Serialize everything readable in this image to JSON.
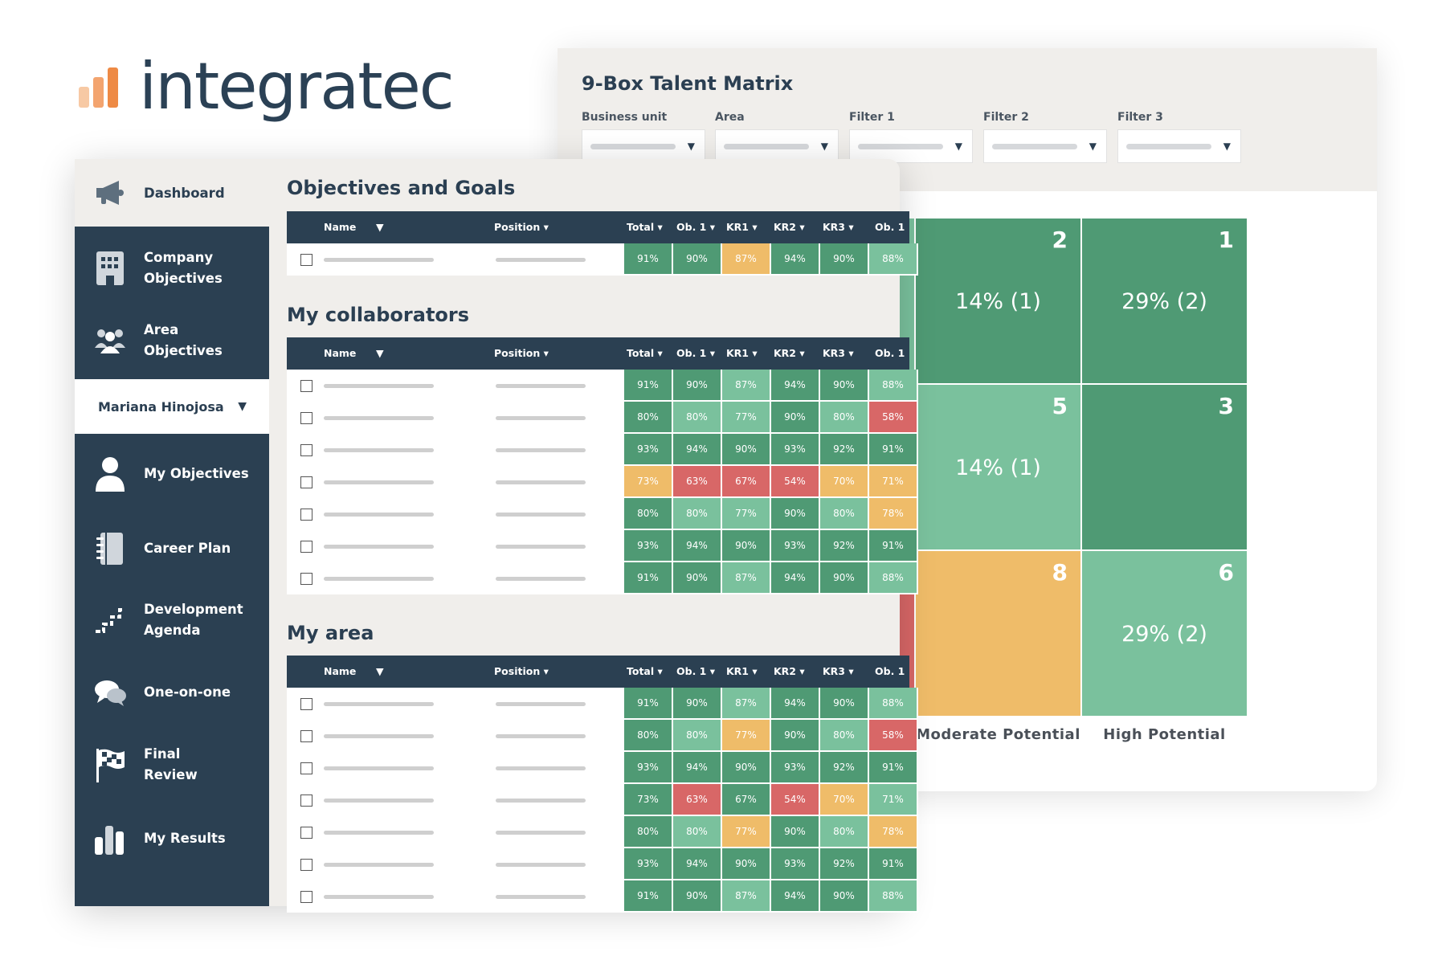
{
  "logo": {
    "text": "integratec",
    "bar_colors": [
      "#f7c9a4",
      "#f3a46f",
      "#ee8a45"
    ]
  },
  "matrix": {
    "title": "9-Box Talent Matrix",
    "filters": [
      {
        "label": "Business unit"
      },
      {
        "label": "Area"
      },
      {
        "label": "Filter 1"
      },
      {
        "label": "Filter 2"
      },
      {
        "label": "Filter 3"
      }
    ],
    "cells": [
      {
        "number": "2",
        "value": "14% (1)",
        "color": "#4f9a74"
      },
      {
        "number": "1",
        "value": "29% (2)",
        "color": "#4f9a74"
      },
      {
        "number": "5",
        "value": "14% (1)",
        "color": "#7ac19d"
      },
      {
        "number": "3",
        "value": "",
        "color": "#4f9a74"
      },
      {
        "number": "8",
        "value": "",
        "color": "#efbc69"
      },
      {
        "number": "6",
        "value": "29% (2)",
        "color": "#7ac19d"
      }
    ],
    "edge_colors": [
      "#7ac19d",
      "#efbc69",
      "#d86767"
    ],
    "axis": [
      "Moderate Potential",
      "High Potential"
    ]
  },
  "sidebar": {
    "dashboard": "Dashboard",
    "items": [
      {
        "label": "Company Objectives",
        "icon": "building-icon"
      },
      {
        "label": "Area Objectives",
        "icon": "group-icon"
      },
      {
        "label": "My Objectives",
        "icon": "person-icon"
      },
      {
        "label": "Career Plan",
        "icon": "notebook-icon"
      },
      {
        "label": "Development Agenda",
        "icon": "stairs-icon"
      },
      {
        "label": "One-on-one",
        "icon": "chat-icon"
      },
      {
        "label": "Final Review",
        "icon": "flag-icon"
      },
      {
        "label": "My Results",
        "icon": "bar-chart-icon"
      }
    ],
    "user": "Mariana Hinojosa"
  },
  "columns": {
    "name": "Name",
    "position": "Position ▾",
    "metrics": [
      "Total ▾",
      "Ob. 1 ▾",
      "KR1 ▾",
      "KR2 ▾",
      "KR3 ▾",
      "Ob. 1"
    ]
  },
  "sections": {
    "objectives": "Objectives and Goals",
    "collaborators": "My collaborators",
    "area": "My area"
  },
  "colors": {
    "dark_green": "#4f9a74",
    "light_green": "#7ac19d",
    "yellow": "#efbc69",
    "red": "#d86767"
  },
  "tables": {
    "objectives": [
      [
        [
          "91%",
          "dg"
        ],
        [
          "90%",
          "dg"
        ],
        [
          "87%",
          "y"
        ],
        [
          "94%",
          "dg"
        ],
        [
          "90%",
          "dg"
        ],
        [
          "88%",
          "lg"
        ]
      ]
    ],
    "collaborators": [
      [
        [
          "91%",
          "dg"
        ],
        [
          "90%",
          "dg"
        ],
        [
          "87%",
          "lg"
        ],
        [
          "94%",
          "dg"
        ],
        [
          "90%",
          "dg"
        ],
        [
          "88%",
          "lg"
        ]
      ],
      [
        [
          "80%",
          "dg"
        ],
        [
          "80%",
          "lg"
        ],
        [
          "77%",
          "lg"
        ],
        [
          "90%",
          "dg"
        ],
        [
          "80%",
          "lg"
        ],
        [
          "58%",
          "r"
        ]
      ],
      [
        [
          "93%",
          "dg"
        ],
        [
          "94%",
          "dg"
        ],
        [
          "90%",
          "dg"
        ],
        [
          "93%",
          "dg"
        ],
        [
          "92%",
          "dg"
        ],
        [
          "91%",
          "dg"
        ]
      ],
      [
        [
          "73%",
          "y"
        ],
        [
          "63%",
          "r"
        ],
        [
          "67%",
          "r"
        ],
        [
          "54%",
          "r"
        ],
        [
          "70%",
          "y"
        ],
        [
          "71%",
          "y"
        ]
      ],
      [
        [
          "80%",
          "dg"
        ],
        [
          "80%",
          "lg"
        ],
        [
          "77%",
          "lg"
        ],
        [
          "90%",
          "dg"
        ],
        [
          "80%",
          "lg"
        ],
        [
          "78%",
          "y"
        ]
      ],
      [
        [
          "93%",
          "dg"
        ],
        [
          "94%",
          "dg"
        ],
        [
          "90%",
          "dg"
        ],
        [
          "93%",
          "dg"
        ],
        [
          "92%",
          "dg"
        ],
        [
          "91%",
          "dg"
        ]
      ],
      [
        [
          "91%",
          "dg"
        ],
        [
          "90%",
          "dg"
        ],
        [
          "87%",
          "lg"
        ],
        [
          "94%",
          "dg"
        ],
        [
          "90%",
          "dg"
        ],
        [
          "88%",
          "lg"
        ]
      ]
    ],
    "area": [
      [
        [
          "91%",
          "dg"
        ],
        [
          "90%",
          "dg"
        ],
        [
          "87%",
          "lg"
        ],
        [
          "94%",
          "dg"
        ],
        [
          "90%",
          "dg"
        ],
        [
          "88%",
          "lg"
        ]
      ],
      [
        [
          "80%",
          "dg"
        ],
        [
          "80%",
          "lg"
        ],
        [
          "77%",
          "y"
        ],
        [
          "90%",
          "dg"
        ],
        [
          "80%",
          "lg"
        ],
        [
          "58%",
          "r"
        ]
      ],
      [
        [
          "93%",
          "dg"
        ],
        [
          "94%",
          "dg"
        ],
        [
          "90%",
          "dg"
        ],
        [
          "93%",
          "dg"
        ],
        [
          "92%",
          "dg"
        ],
        [
          "91%",
          "dg"
        ]
      ],
      [
        [
          "73%",
          "dg"
        ],
        [
          "63%",
          "r"
        ],
        [
          "67%",
          "dg"
        ],
        [
          "54%",
          "r"
        ],
        [
          "70%",
          "y"
        ],
        [
          "71%",
          "lg"
        ]
      ],
      [
        [
          "80%",
          "dg"
        ],
        [
          "80%",
          "lg"
        ],
        [
          "77%",
          "y"
        ],
        [
          "90%",
          "dg"
        ],
        [
          "80%",
          "lg"
        ],
        [
          "78%",
          "y"
        ]
      ],
      [
        [
          "93%",
          "dg"
        ],
        [
          "94%",
          "dg"
        ],
        [
          "90%",
          "dg"
        ],
        [
          "93%",
          "dg"
        ],
        [
          "92%",
          "dg"
        ],
        [
          "91%",
          "dg"
        ]
      ],
      [
        [
          "91%",
          "dg"
        ],
        [
          "90%",
          "dg"
        ],
        [
          "87%",
          "lg"
        ],
        [
          "94%",
          "dg"
        ],
        [
          "90%",
          "dg"
        ],
        [
          "88%",
          "lg"
        ]
      ]
    ]
  }
}
